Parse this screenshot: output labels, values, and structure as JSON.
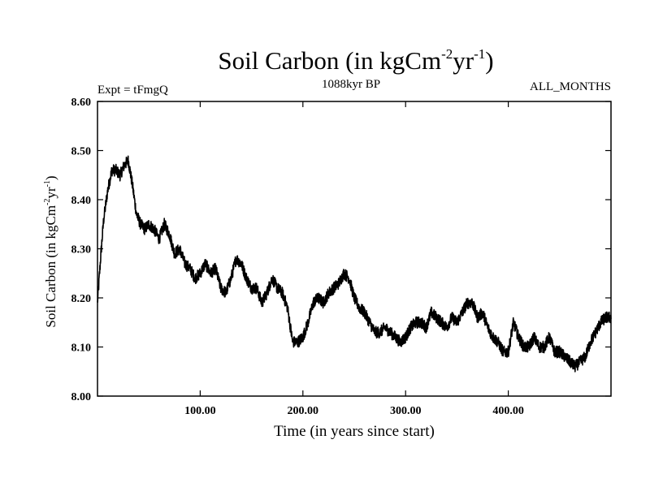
{
  "chart_data": {
    "type": "line",
    "title_main": "Soil Carbon (in kgCm",
    "title_sup1": "-2",
    "title_mid": "yr",
    "title_sup2": "-1",
    "title_end": ")",
    "subtitle_left": "Expt = tFmgQ",
    "subtitle_center": "1088kyr BP",
    "subtitle_right": "ALL_MONTHS",
    "xlabel": "Time (in years since start)",
    "ylabel_main": "Soil Carbon (in kgCm",
    "ylabel_sup1": "-2",
    "ylabel_mid": "yr",
    "ylabel_sup2": "-1",
    "ylabel_end": ")",
    "xlim": [
      0,
      500
    ],
    "ylim": [
      8.0,
      8.6
    ],
    "xticks": [
      100,
      200,
      300,
      400
    ],
    "xtick_labels": [
      "100.00",
      "200.00",
      "300.00",
      "400.00"
    ],
    "yticks": [
      8.0,
      8.1,
      8.2,
      8.3,
      8.4,
      8.5,
      8.6
    ],
    "ytick_labels": [
      "8.00",
      "8.10",
      "8.20",
      "8.30",
      "8.40",
      "8.50",
      "8.60"
    ],
    "noise_amplitude": 0.012,
    "series": [
      {
        "name": "Soil Carbon",
        "color": "#000000",
        "x": [
          0,
          3,
          6,
          10,
          14,
          18,
          22,
          26,
          30,
          34,
          38,
          42,
          46,
          50,
          55,
          60,
          65,
          70,
          75,
          80,
          85,
          90,
          95,
          100,
          105,
          110,
          115,
          120,
          125,
          130,
          135,
          140,
          145,
          150,
          155,
          160,
          165,
          170,
          175,
          180,
          185,
          190,
          195,
          200,
          205,
          210,
          215,
          220,
          225,
          230,
          235,
          240,
          245,
          250,
          255,
          260,
          265,
          270,
          275,
          280,
          285,
          290,
          295,
          300,
          305,
          310,
          315,
          320,
          325,
          330,
          335,
          340,
          345,
          350,
          355,
          360,
          365,
          370,
          375,
          380,
          385,
          390,
          395,
          400,
          405,
          410,
          415,
          420,
          425,
          430,
          435,
          440,
          445,
          450,
          455,
          460,
          465,
          470,
          475,
          480,
          485,
          490,
          495,
          500
        ],
        "y": [
          8.19,
          8.28,
          8.36,
          8.42,
          8.46,
          8.46,
          8.45,
          8.47,
          8.48,
          8.43,
          8.37,
          8.35,
          8.34,
          8.35,
          8.34,
          8.32,
          8.35,
          8.33,
          8.29,
          8.3,
          8.27,
          8.26,
          8.24,
          8.25,
          8.27,
          8.25,
          8.26,
          8.22,
          8.21,
          8.24,
          8.28,
          8.27,
          8.24,
          8.22,
          8.22,
          8.19,
          8.21,
          8.24,
          8.22,
          8.21,
          8.18,
          8.11,
          8.11,
          8.12,
          8.15,
          8.19,
          8.2,
          8.19,
          8.21,
          8.22,
          8.23,
          8.25,
          8.24,
          8.2,
          8.18,
          8.17,
          8.15,
          8.13,
          8.13,
          8.14,
          8.13,
          8.12,
          8.11,
          8.12,
          8.14,
          8.15,
          8.15,
          8.14,
          8.17,
          8.16,
          8.15,
          8.14,
          8.16,
          8.15,
          8.17,
          8.19,
          8.19,
          8.16,
          8.17,
          8.14,
          8.12,
          8.11,
          8.09,
          8.09,
          8.15,
          8.12,
          8.1,
          8.1,
          8.12,
          8.1,
          8.1,
          8.12,
          8.09,
          8.09,
          8.08,
          8.07,
          8.06,
          8.07,
          8.08,
          8.11,
          8.13,
          8.15,
          8.16,
          8.16
        ]
      }
    ]
  }
}
